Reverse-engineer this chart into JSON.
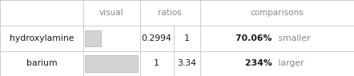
{
  "rows": [
    "hydroxylamine",
    "barium"
  ],
  "ratio1": [
    "0.2994",
    "1"
  ],
  "ratio2": [
    "1",
    "3.34"
  ],
  "comparisons_bold": [
    "70.06%",
    "234%"
  ],
  "comparisons_light": [
    "smaller",
    "larger"
  ],
  "bar_ratios": [
    0.2994,
    1.0
  ],
  "bar_color": "#d3d3d3",
  "bar_edge_color": "#b0b0b0",
  "bg_color": "#ffffff",
  "text_color": "#1a1a1a",
  "header_color": "#888888",
  "light_text_color": "#888888",
  "bold_text_color": "#1a1a1a",
  "line_color": "#cccccc",
  "figsize": [
    4.42,
    0.95
  ],
  "dpi": 100,
  "col_boundaries": [
    0.0,
    0.235,
    0.395,
    0.49,
    0.565,
    1.0
  ],
  "row_boundaries": [
    0.0,
    0.33,
    0.66,
    1.0
  ],
  "fontsize": 7.8,
  "header_fontsize": 7.5
}
